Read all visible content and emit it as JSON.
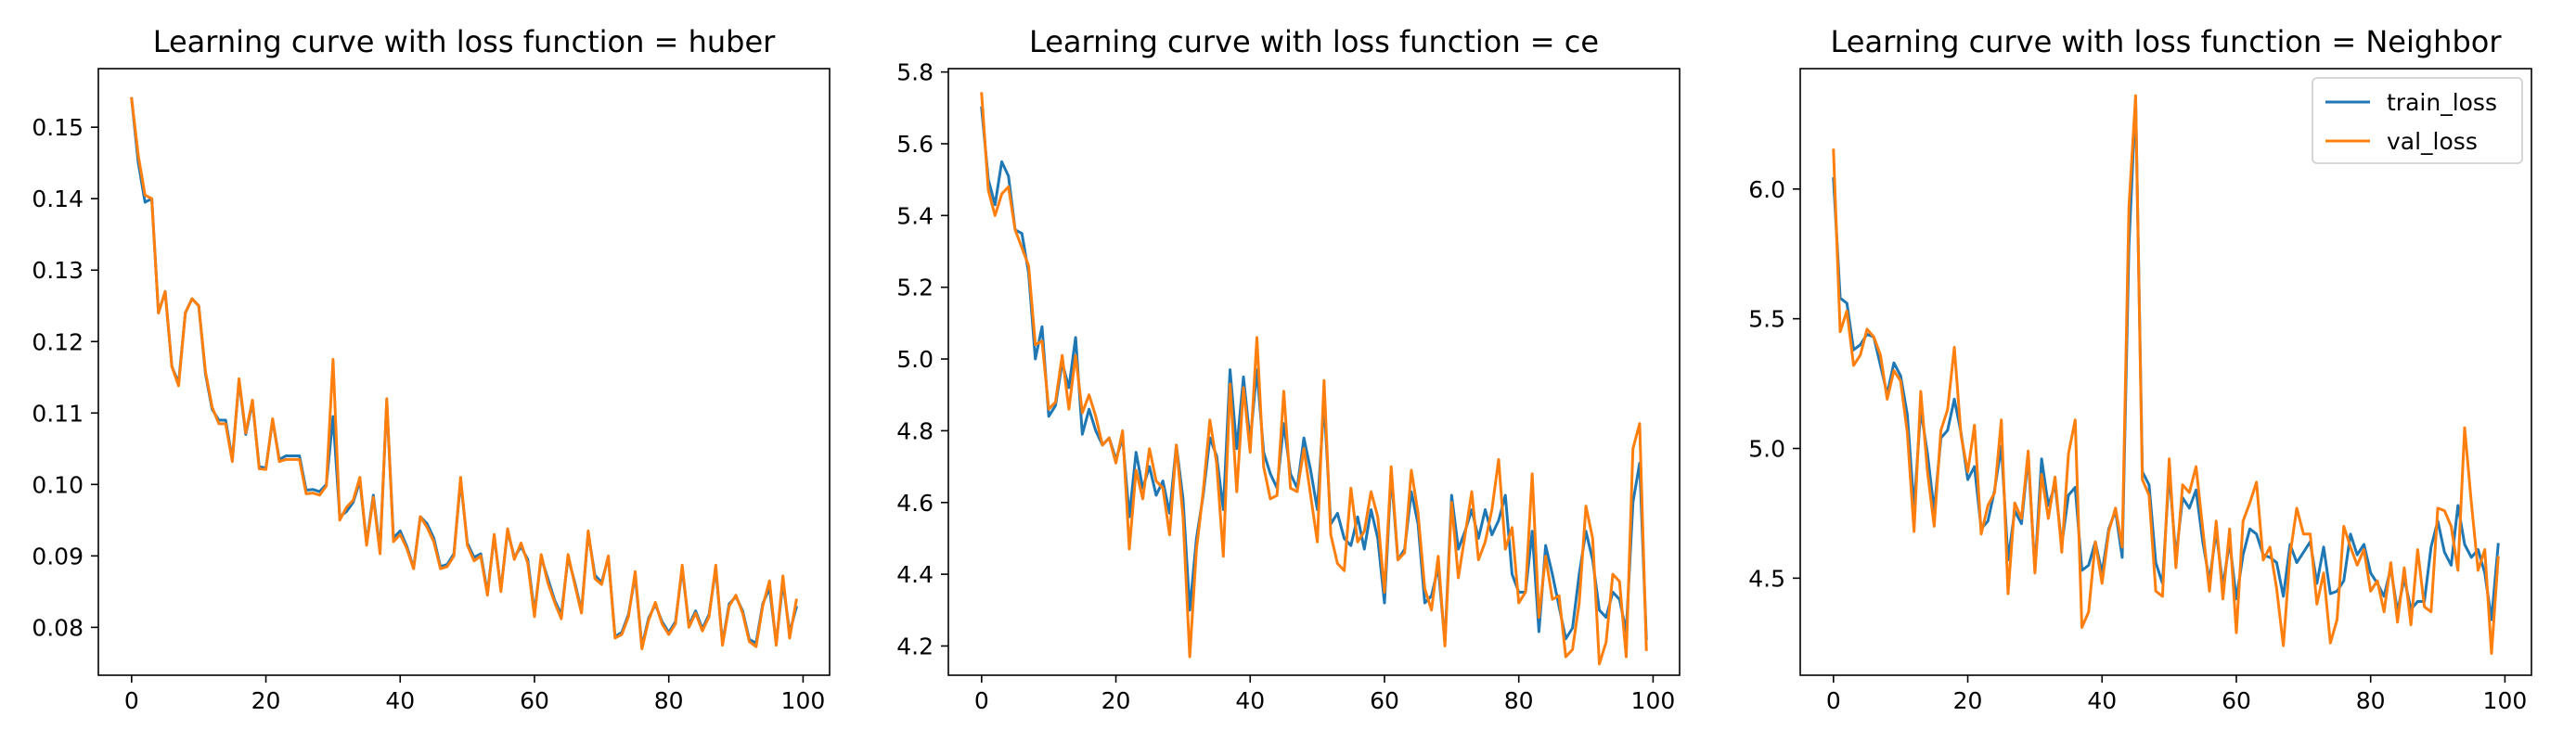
{
  "colors": {
    "train": "#1f77b4",
    "val": "#ff7f0e"
  },
  "legend": {
    "placement": "top-right",
    "entries": [
      "train_loss",
      "val_loss"
    ]
  },
  "chart_data": [
    {
      "type": "line",
      "title": "Learning curve with loss function = huber",
      "xlabel": "",
      "ylabel": "",
      "xlim": [
        -4.95,
        103.95
      ],
      "ylim": [
        0.0733,
        0.1582
      ],
      "xticks": [
        0,
        20,
        40,
        60,
        80,
        100
      ],
      "yticks": [
        0.08,
        0.09,
        0.1,
        0.11,
        0.12,
        0.13,
        0.14,
        0.15
      ],
      "ytick_labels": [
        "0.08",
        "0.09",
        "0.10",
        "0.11",
        "0.12",
        "0.13",
        "0.14",
        "0.15"
      ],
      "show_legend": false,
      "series": [
        {
          "name": "train_loss",
          "color": "#1f77b4",
          "values": [
            0.154,
            0.145,
            0.1395,
            0.14,
            0.124,
            0.127,
            0.1165,
            0.1142,
            0.124,
            0.126,
            0.125,
            0.1155,
            0.1105,
            0.109,
            0.109,
            0.1035,
            0.1145,
            0.107,
            0.1115,
            0.1025,
            0.1023,
            0.109,
            0.1035,
            0.104,
            0.104,
            0.104,
            0.0992,
            0.0993,
            0.099,
            0.1,
            0.1095,
            0.0955,
            0.0962,
            0.0975,
            0.1005,
            0.0918,
            0.0985,
            0.0908,
            0.1115,
            0.0925,
            0.0935,
            0.0913,
            0.0883,
            0.0955,
            0.0945,
            0.0925,
            0.0885,
            0.0888,
            0.0903,
            0.1005,
            0.0918,
            0.0898,
            0.0903,
            0.0848,
            0.0928,
            0.0853,
            0.0935,
            0.0898,
            0.0913,
            0.0895,
            0.082,
            0.0898,
            0.0868,
            0.0838,
            0.0818,
            0.0898,
            0.0863,
            0.0823,
            0.0932,
            0.0873,
            0.0863,
            0.0898,
            0.0787,
            0.0793,
            0.0818,
            0.0873,
            0.0773,
            0.0813,
            0.0832,
            0.0808,
            0.0793,
            0.0808,
            0.0882,
            0.0803,
            0.0823,
            0.0798,
            0.0818,
            0.0882,
            0.0778,
            0.0833,
            0.0843,
            0.0823,
            0.0783,
            0.0778,
            0.0833,
            0.0855,
            0.0778,
            0.0863,
            0.0793,
            0.0828
          ]
        },
        {
          "name": "val_loss",
          "color": "#ff7f0e",
          "values": [
            0.154,
            0.146,
            0.1405,
            0.14,
            0.124,
            0.127,
            0.1165,
            0.1138,
            0.124,
            0.126,
            0.125,
            0.1158,
            0.1108,
            0.1085,
            0.1085,
            0.1032,
            0.1148,
            0.1072,
            0.1118,
            0.1022,
            0.1021,
            0.1092,
            0.1032,
            0.1035,
            0.1035,
            0.1035,
            0.0987,
            0.0988,
            0.0985,
            0.0998,
            0.1175,
            0.095,
            0.0968,
            0.0978,
            0.101,
            0.0915,
            0.0982,
            0.0903,
            0.112,
            0.092,
            0.093,
            0.091,
            0.0882,
            0.0955,
            0.094,
            0.092,
            0.0882,
            0.0885,
            0.09,
            0.101,
            0.0915,
            0.0893,
            0.09,
            0.0845,
            0.093,
            0.085,
            0.0938,
            0.0895,
            0.0918,
            0.089,
            0.0815,
            0.0902,
            0.0862,
            0.0835,
            0.0812,
            0.0902,
            0.086,
            0.082,
            0.0935,
            0.0868,
            0.086,
            0.09,
            0.0785,
            0.079,
            0.0815,
            0.0878,
            0.077,
            0.081,
            0.0835,
            0.0805,
            0.079,
            0.0805,
            0.0887,
            0.08,
            0.082,
            0.0795,
            0.0815,
            0.0887,
            0.0775,
            0.083,
            0.0845,
            0.082,
            0.078,
            0.0773,
            0.083,
            0.0865,
            0.0775,
            0.0872,
            0.0785,
            0.0838
          ]
        }
      ]
    },
    {
      "type": "line",
      "title": "Learning curve with loss function = ce",
      "xlabel": "",
      "ylabel": "",
      "xlim": [
        -4.95,
        103.95
      ],
      "ylim": [
        4.1185,
        5.8094
      ],
      "xticks": [
        0,
        20,
        40,
        60,
        80,
        100
      ],
      "yticks": [
        4.2,
        4.4,
        4.6,
        4.8,
        5.0,
        5.2,
        5.4,
        5.6,
        5.8
      ],
      "ytick_labels": [
        "4.2",
        "4.4",
        "4.6",
        "4.8",
        "5.0",
        "5.2",
        "5.4",
        "5.6",
        "5.8"
      ],
      "show_legend": false,
      "series": [
        {
          "name": "train_loss",
          "color": "#1f77b4",
          "values": [
            5.7,
            5.5,
            5.43,
            5.55,
            5.51,
            5.36,
            5.35,
            5.24,
            5.0,
            5.09,
            4.84,
            4.87,
            4.99,
            4.92,
            5.06,
            4.79,
            4.86,
            4.8,
            4.76,
            4.78,
            4.72,
            4.78,
            4.56,
            4.74,
            4.64,
            4.7,
            4.62,
            4.66,
            4.57,
            4.76,
            4.61,
            4.3,
            4.5,
            4.62,
            4.78,
            4.73,
            4.58,
            4.97,
            4.75,
            4.95,
            4.77,
            4.97,
            4.74,
            4.68,
            4.64,
            4.82,
            4.68,
            4.64,
            4.78,
            4.69,
            4.58,
            4.88,
            4.54,
            4.57,
            4.5,
            4.48,
            4.56,
            4.47,
            4.58,
            4.5,
            4.32,
            4.68,
            4.44,
            4.47,
            4.63,
            4.54,
            4.32,
            4.34,
            4.42,
            4.21,
            4.62,
            4.47,
            4.52,
            4.58,
            4.5,
            4.58,
            4.51,
            4.55,
            4.62,
            4.4,
            4.35,
            4.35,
            4.52,
            4.24,
            4.48,
            4.4,
            4.31,
            4.22,
            4.25,
            4.4,
            4.52,
            4.44,
            4.3,
            4.28,
            4.35,
            4.33,
            4.24,
            4.6,
            4.71,
            4.22
          ]
        },
        {
          "name": "val_loss",
          "color": "#ff7f0e",
          "values": [
            5.74,
            5.47,
            5.4,
            5.46,
            5.48,
            5.36,
            5.31,
            5.26,
            5.04,
            5.05,
            4.86,
            4.88,
            5.01,
            4.86,
            5.01,
            4.85,
            4.9,
            4.84,
            4.76,
            4.78,
            4.71,
            4.8,
            4.47,
            4.69,
            4.61,
            4.75,
            4.66,
            4.64,
            4.51,
            4.76,
            4.56,
            4.17,
            4.47,
            4.63,
            4.83,
            4.71,
            4.45,
            4.93,
            4.63,
            4.92,
            4.74,
            5.06,
            4.7,
            4.61,
            4.62,
            4.91,
            4.64,
            4.63,
            4.75,
            4.62,
            4.49,
            4.94,
            4.51,
            4.43,
            4.41,
            4.64,
            4.49,
            4.52,
            4.63,
            4.56,
            4.35,
            4.7,
            4.44,
            4.46,
            4.69,
            4.57,
            4.36,
            4.3,
            4.45,
            4.2,
            4.6,
            4.39,
            4.51,
            4.63,
            4.44,
            4.49,
            4.58,
            4.72,
            4.47,
            4.53,
            4.32,
            4.35,
            4.68,
            4.28,
            4.45,
            4.33,
            4.34,
            4.17,
            4.19,
            4.32,
            4.59,
            4.5,
            4.15,
            4.21,
            4.4,
            4.38,
            4.17,
            4.75,
            4.82,
            4.19
          ]
        }
      ]
    },
    {
      "type": "line",
      "title": "Learning curve with loss function = Neighbor",
      "xlabel": "",
      "ylabel": "",
      "xlim": [
        -4.95,
        103.95
      ],
      "ylim": [
        4.1259,
        6.4641
      ],
      "xticks": [
        0,
        20,
        40,
        60,
        80,
        100
      ],
      "yticks": [
        4.5,
        5.0,
        5.5,
        6.0
      ],
      "ytick_labels": [
        "4.5",
        "5.0",
        "5.5",
        "6.0"
      ],
      "show_legend": true,
      "series": [
        {
          "name": "train_loss",
          "color": "#1f77b4",
          "values": [
            6.04,
            5.58,
            5.56,
            5.38,
            5.4,
            5.44,
            5.43,
            5.32,
            5.21,
            5.33,
            5.28,
            5.13,
            4.77,
            5.15,
            4.98,
            4.76,
            5.04,
            5.07,
            5.19,
            5.06,
            4.88,
            4.93,
            4.69,
            4.72,
            4.84,
            5.01,
            4.57,
            4.76,
            4.71,
            4.97,
            4.53,
            4.96,
            4.78,
            4.86,
            4.63,
            4.82,
            4.85,
            4.53,
            4.55,
            4.64,
            4.52,
            4.69,
            4.76,
            4.58,
            5.78,
            6.35,
            4.91,
            4.86,
            4.56,
            4.48,
            4.91,
            4.58,
            4.81,
            4.77,
            4.84,
            4.64,
            4.49,
            4.68,
            4.47,
            4.64,
            4.42,
            4.59,
            4.69,
            4.67,
            4.59,
            4.58,
            4.56,
            4.43,
            4.63,
            4.56,
            4.6,
            4.64,
            4.48,
            4.62,
            4.44,
            4.45,
            4.49,
            4.67,
            4.59,
            4.63,
            4.52,
            4.48,
            4.43,
            4.54,
            4.37,
            4.5,
            4.38,
            4.41,
            4.41,
            4.62,
            4.72,
            4.6,
            4.55,
            4.78,
            4.63,
            4.58,
            4.61,
            4.52,
            4.34,
            4.63
          ]
        },
        {
          "name": "val_loss",
          "color": "#ff7f0e",
          "values": [
            6.15,
            5.45,
            5.53,
            5.32,
            5.36,
            5.46,
            5.43,
            5.36,
            5.19,
            5.3,
            5.26,
            5.06,
            4.68,
            5.22,
            4.91,
            4.7,
            5.07,
            5.15,
            5.39,
            5.05,
            4.91,
            5.09,
            4.67,
            4.78,
            4.83,
            5.11,
            4.44,
            4.79,
            4.73,
            4.99,
            4.52,
            4.9,
            4.73,
            4.89,
            4.6,
            4.98,
            5.11,
            4.31,
            4.37,
            4.64,
            4.48,
            4.68,
            4.77,
            4.62,
            5.93,
            6.36,
            4.88,
            4.82,
            4.45,
            4.43,
            4.96,
            4.54,
            4.86,
            4.83,
            4.93,
            4.69,
            4.45,
            4.72,
            4.42,
            4.69,
            4.29,
            4.72,
            4.79,
            4.87,
            4.57,
            4.62,
            4.46,
            4.24,
            4.59,
            4.77,
            4.67,
            4.67,
            4.4,
            4.52,
            4.25,
            4.34,
            4.7,
            4.62,
            4.55,
            4.61,
            4.45,
            4.49,
            4.37,
            4.56,
            4.33,
            4.54,
            4.32,
            4.61,
            4.39,
            4.37,
            4.77,
            4.76,
            4.7,
            4.53,
            5.08,
            4.79,
            4.53,
            4.61,
            4.21,
            4.58
          ]
        }
      ]
    }
  ]
}
